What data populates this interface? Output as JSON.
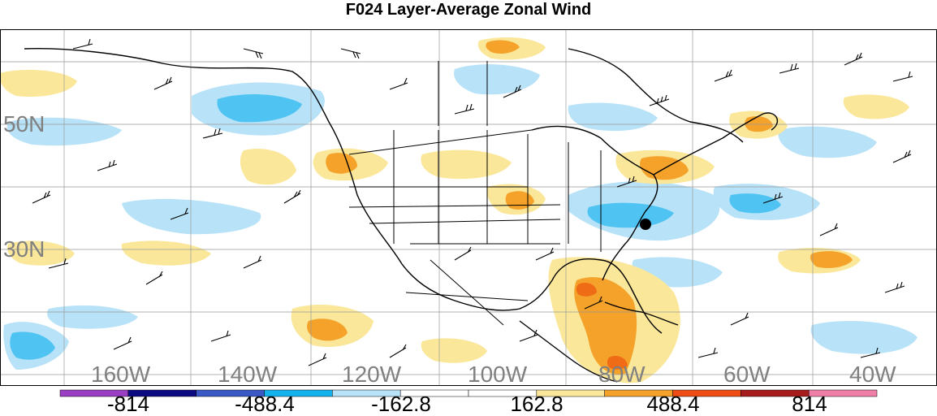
{
  "title": "F024 Layer-Average Zonal Wind",
  "map": {
    "lat_labels": [
      "50N",
      "30N"
    ],
    "lon_labels": [
      "160W",
      "140W",
      "120W",
      "100W",
      "80W",
      "60W",
      "40W"
    ],
    "extent": {
      "lon_min": -180,
      "lon_max": -32,
      "lat_min": 14,
      "lat_max": 68
    },
    "marker": {
      "lon": -75.5,
      "lat": 35.3
    }
  },
  "colorbar": {
    "labels": [
      "-814",
      "-488.4",
      "-162.8",
      "162.8",
      "488.4",
      "814"
    ],
    "colors": [
      "#9a3fc4",
      "#0d0b82",
      "#3b58c7",
      "#14b3ee",
      "#b8e2f8",
      "#ffffff",
      "#ffffff",
      "#fbe79a",
      "#f4a22a",
      "#ef4d16",
      "#a71c1c",
      "#f07fa8"
    ]
  },
  "palette": {
    "neg_light": "#b8e2f8",
    "neg_mid": "#4fc4f3",
    "pos_light": "#fbe79a",
    "pos_mid": "#f4a22a",
    "pos_strong": "#ef6b16"
  }
}
